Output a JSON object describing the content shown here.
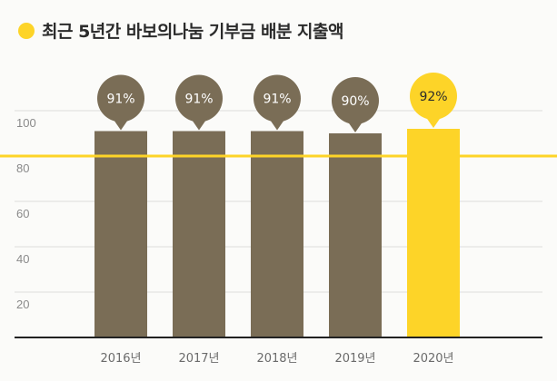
{
  "title": "최근 5년간 바보의나눔 기부금 배분 지출액",
  "colors": {
    "bar": "#7a6d56",
    "highlight": "#fdd428",
    "grid": "#dcdcdc",
    "axis": "#222222"
  },
  "chart_data": {
    "type": "bar",
    "title": "최근 5년간 바보의나눔 기부금 배분 지출액",
    "categories": [
      "2016년",
      "2017년",
      "2018년",
      "2019년",
      "2020년"
    ],
    "values": [
      91,
      91,
      91,
      90,
      92
    ],
    "data_labels": [
      "91%",
      "91%",
      "91%",
      "90%",
      "92%"
    ],
    "highlight_index": 4,
    "ylim": [
      0,
      100
    ],
    "yticks": [
      20,
      40,
      60,
      80,
      100
    ],
    "reference_line": 80,
    "grid": true,
    "xlabel": "",
    "ylabel": ""
  }
}
